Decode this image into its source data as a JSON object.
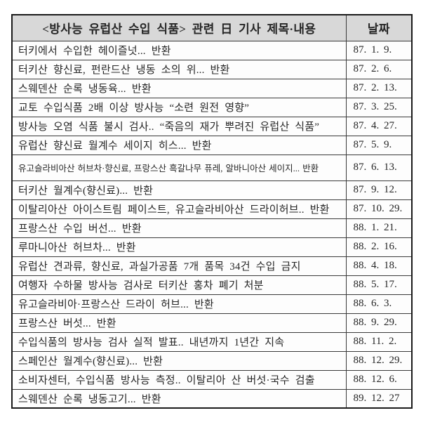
{
  "table": {
    "header": {
      "title_col": "<방사능 유럽산 수입 식품> 관련 日 기사 제목·내용",
      "date_col": "날짜"
    },
    "rows": [
      {
        "title": "터키에서 수입한 헤이즐넛... 반환",
        "date": "87. 1. 9."
      },
      {
        "title": "터키산 향신료, 펀란드산 냉동 소의 위... 반환",
        "date": "87. 2. 6."
      },
      {
        "title": "스웨덴산 순록 냉동육... 반환",
        "date": "87. 2. 13."
      },
      {
        "title": "교토 수입식품 2배 이상 방사능 “소련 원전 영향”",
        "date": "87. 3. 25."
      },
      {
        "title": "방사능 오염 식품 불시 검사.. “죽음의 재가 뿌려진 유럽산 식품”",
        "date": "87. 4. 27."
      },
      {
        "title": "유럽산 향신료 월계수 세이지 히스... 반환",
        "date": "87. 5. 9."
      },
      {
        "title": "유고슬라비아산 허브차·향신료, 프랑스산 흑갈나무 퓨레, 알바니아산 세이지... 반환",
        "date": "87. 6. 13.",
        "small": true
      },
      {
        "title": "터키산 월계수(향신료)... 반환",
        "date": "87. 9. 12."
      },
      {
        "title": "이탈리아산 아이스트림 페이스트, 유고슬라비아산 드라이허브.. 반환",
        "date": "87. 10. 29."
      },
      {
        "title": "프랑스산 수입 버선... 반환",
        "date": "88. 1. 21."
      },
      {
        "title": "루마니아산 허브차... 반환",
        "date": "88. 2. 16."
      },
      {
        "title": "유럽산 견과류, 향신료, 과실가공품 7개 품목 34건 수입 금지",
        "date": "88. 4. 18."
      },
      {
        "title": "여행자 수하물 방사능 검사로 터키산 홍차 폐기 처분",
        "date": "88. 5. 17."
      },
      {
        "title": "유고슬라비아·프랑스산 드라이 허브... 반환",
        "date": "88. 6. 3."
      },
      {
        "title": "프랑스산 버섯... 반환",
        "date": "88. 9. 29."
      },
      {
        "title": "수입식품의 방사능 검사 실적 발표.. 내년까지 1년간 지속",
        "date": "88. 11. 2."
      },
      {
        "title": "스페인산 월계수(향신료)... 반환",
        "date": "88. 12. 29."
      },
      {
        "title": "소비자센터, 수입식품 방사능 측정.. 이탈리아 산 버섯·국수 검출",
        "date": "88. 12. 6."
      },
      {
        "title": "스웨덴산 순록 냉동고기... 반환",
        "date": "89. 12. 27"
      }
    ]
  },
  "colors": {
    "header_bg": "#d8d8d8",
    "border_outer": "#1a1a1a",
    "border_inner": "#3a3a3a",
    "text": "#262626",
    "row_bg": "#fdfdfd"
  }
}
